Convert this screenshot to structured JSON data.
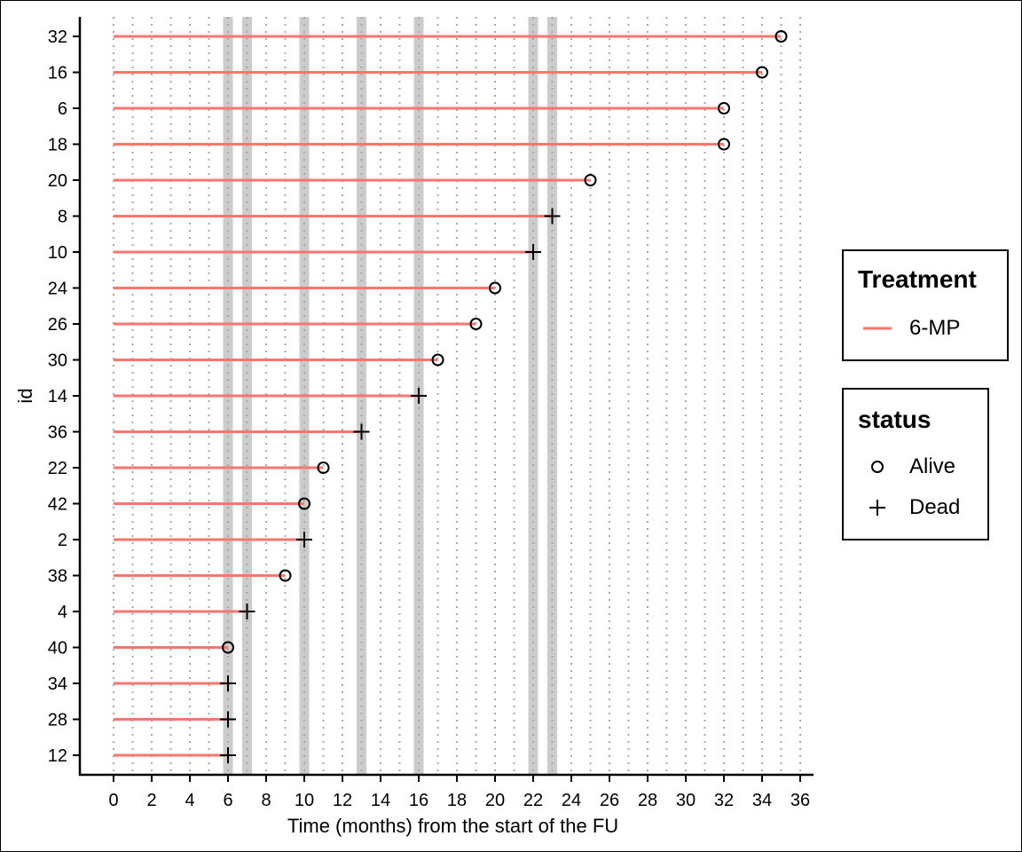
{
  "chart_data": {
    "type": "swimmer",
    "xlabel": "Time (months) from the start of the FU",
    "ylabel": "id",
    "xlim": [
      -1.7,
      37
    ],
    "x_ticks": [
      0,
      2,
      4,
      6,
      8,
      10,
      12,
      14,
      16,
      18,
      20,
      22,
      24,
      26,
      28,
      30,
      32,
      34,
      36
    ],
    "highlight_times": [
      6,
      7,
      10,
      13,
      16,
      22,
      23
    ],
    "rows": [
      {
        "id": "32",
        "end": 35,
        "status": "Alive"
      },
      {
        "id": "16",
        "end": 34,
        "status": "Alive"
      },
      {
        "id": "6",
        "end": 32,
        "status": "Alive"
      },
      {
        "id": "18",
        "end": 32,
        "status": "Alive"
      },
      {
        "id": "20",
        "end": 25,
        "status": "Alive"
      },
      {
        "id": "8",
        "end": 23,
        "status": "Dead"
      },
      {
        "id": "10",
        "end": 22,
        "status": "Dead"
      },
      {
        "id": "24",
        "end": 20,
        "status": "Alive"
      },
      {
        "id": "26",
        "end": 19,
        "status": "Alive"
      },
      {
        "id": "30",
        "end": 17,
        "status": "Alive"
      },
      {
        "id": "14",
        "end": 16,
        "status": "Dead"
      },
      {
        "id": "36",
        "end": 13,
        "status": "Dead"
      },
      {
        "id": "22",
        "end": 11,
        "status": "Alive"
      },
      {
        "id": "42",
        "end": 10,
        "status": "Alive"
      },
      {
        "id": "2",
        "end": 10,
        "status": "Dead"
      },
      {
        "id": "38",
        "end": 9,
        "status": "Alive"
      },
      {
        "id": "4",
        "end": 7,
        "status": "Dead"
      },
      {
        "id": "40",
        "end": 6,
        "status": "Alive"
      },
      {
        "id": "34",
        "end": 6,
        "status": "Dead"
      },
      {
        "id": "28",
        "end": 6,
        "status": "Dead"
      },
      {
        "id": "12",
        "end": 6,
        "status": "Dead"
      }
    ],
    "series_color": "#f8766d",
    "highlight_color": "#cccccc",
    "grid": "vertical dotted"
  },
  "legend": {
    "treatment_title": "Treatment",
    "treatment_items": [
      {
        "label": "6-MP",
        "color": "#f8766d"
      }
    ],
    "status_title": "status",
    "status_items": [
      {
        "label": "Alive",
        "shape": "circle"
      },
      {
        "label": "Dead",
        "shape": "plus"
      }
    ]
  }
}
